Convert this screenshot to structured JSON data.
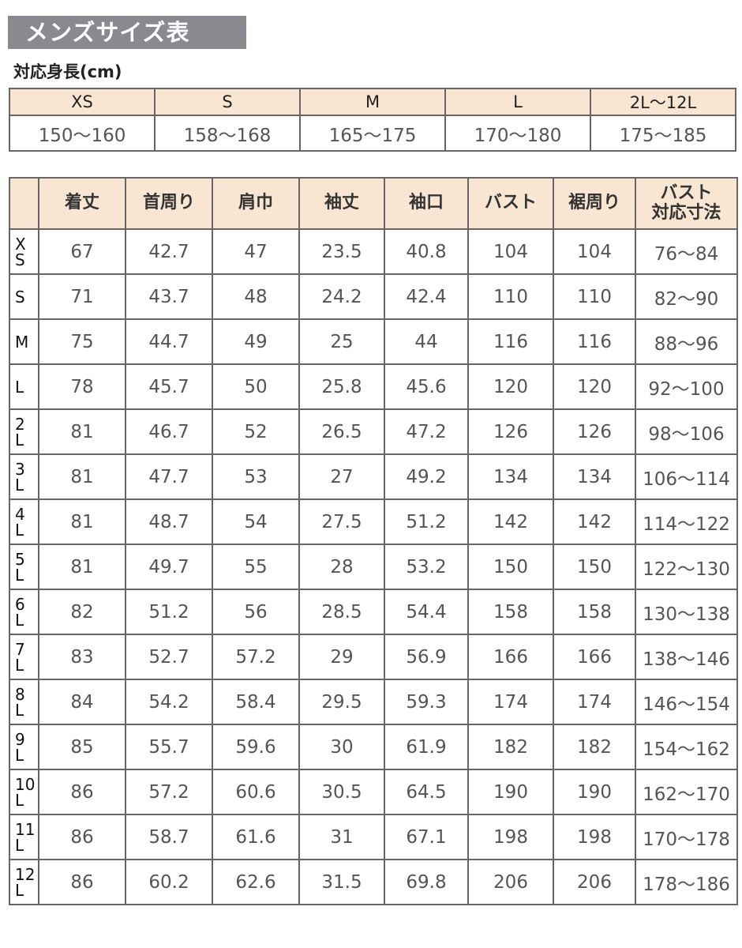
{
  "title": "メンズサイズ表",
  "height_section": {
    "label": "対応身長(cm)",
    "sizes": [
      "XS",
      "S",
      "M",
      "L",
      "2L〜12L"
    ],
    "ranges": [
      "150〜160",
      "158〜168",
      "165〜175",
      "170〜180",
      "175〜185"
    ]
  },
  "size_table": {
    "headers": [
      "",
      "着丈",
      "首周り",
      "肩巾",
      "袖丈",
      "袖口",
      "バスト",
      "裾周り",
      "バスト\n対応寸法"
    ],
    "rows": [
      [
        "X\nS",
        "67",
        "42.7",
        "47",
        "23.5",
        "40.8",
        "104",
        "104",
        "76〜84"
      ],
      [
        "S",
        "71",
        "43.7",
        "48",
        "24.2",
        "42.4",
        "110",
        "110",
        "82〜90"
      ],
      [
        "M",
        "75",
        "44.7",
        "49",
        "25",
        "44",
        "116",
        "116",
        "88〜96"
      ],
      [
        "L",
        "78",
        "45.7",
        "50",
        "25.8",
        "45.6",
        "120",
        "120",
        "92〜100"
      ],
      [
        "2\nL",
        "81",
        "46.7",
        "52",
        "26.5",
        "47.2",
        "126",
        "126",
        "98〜106"
      ],
      [
        "3\nL",
        "81",
        "47.7",
        "53",
        "27",
        "49.2",
        "134",
        "134",
        "106〜114"
      ],
      [
        "4\nL",
        "81",
        "48.7",
        "54",
        "27.5",
        "51.2",
        "142",
        "142",
        "114〜122"
      ],
      [
        "5\nL",
        "81",
        "49.7",
        "55",
        "28",
        "53.2",
        "150",
        "150",
        "122〜130"
      ],
      [
        "6\nL",
        "82",
        "51.2",
        "56",
        "28.5",
        "54.4",
        "158",
        "158",
        "130〜138"
      ],
      [
        "7\nL",
        "83",
        "52.7",
        "57.2",
        "29",
        "56.9",
        "166",
        "166",
        "138〜146"
      ],
      [
        "8\nL",
        "84",
        "54.2",
        "58.4",
        "29.5",
        "59.3",
        "174",
        "174",
        "146〜154"
      ],
      [
        "9\nL",
        "85",
        "55.7",
        "59.6",
        "30",
        "61.9",
        "182",
        "182",
        "154〜162"
      ],
      [
        "10\nL",
        "86",
        "57.2",
        "60.6",
        "30.5",
        "64.5",
        "190",
        "190",
        "162〜170"
      ],
      [
        "11\nL",
        "86",
        "58.7",
        "61.6",
        "31",
        "67.1",
        "198",
        "198",
        "170〜178"
      ],
      [
        "12\nL",
        "86",
        "60.2",
        "62.6",
        "31.5",
        "69.8",
        "206",
        "206",
        "178〜186"
      ]
    ]
  },
  "colors": {
    "title_bg": "#8b8890",
    "header_bg": "#f8e6d2",
    "border": "#666666"
  }
}
